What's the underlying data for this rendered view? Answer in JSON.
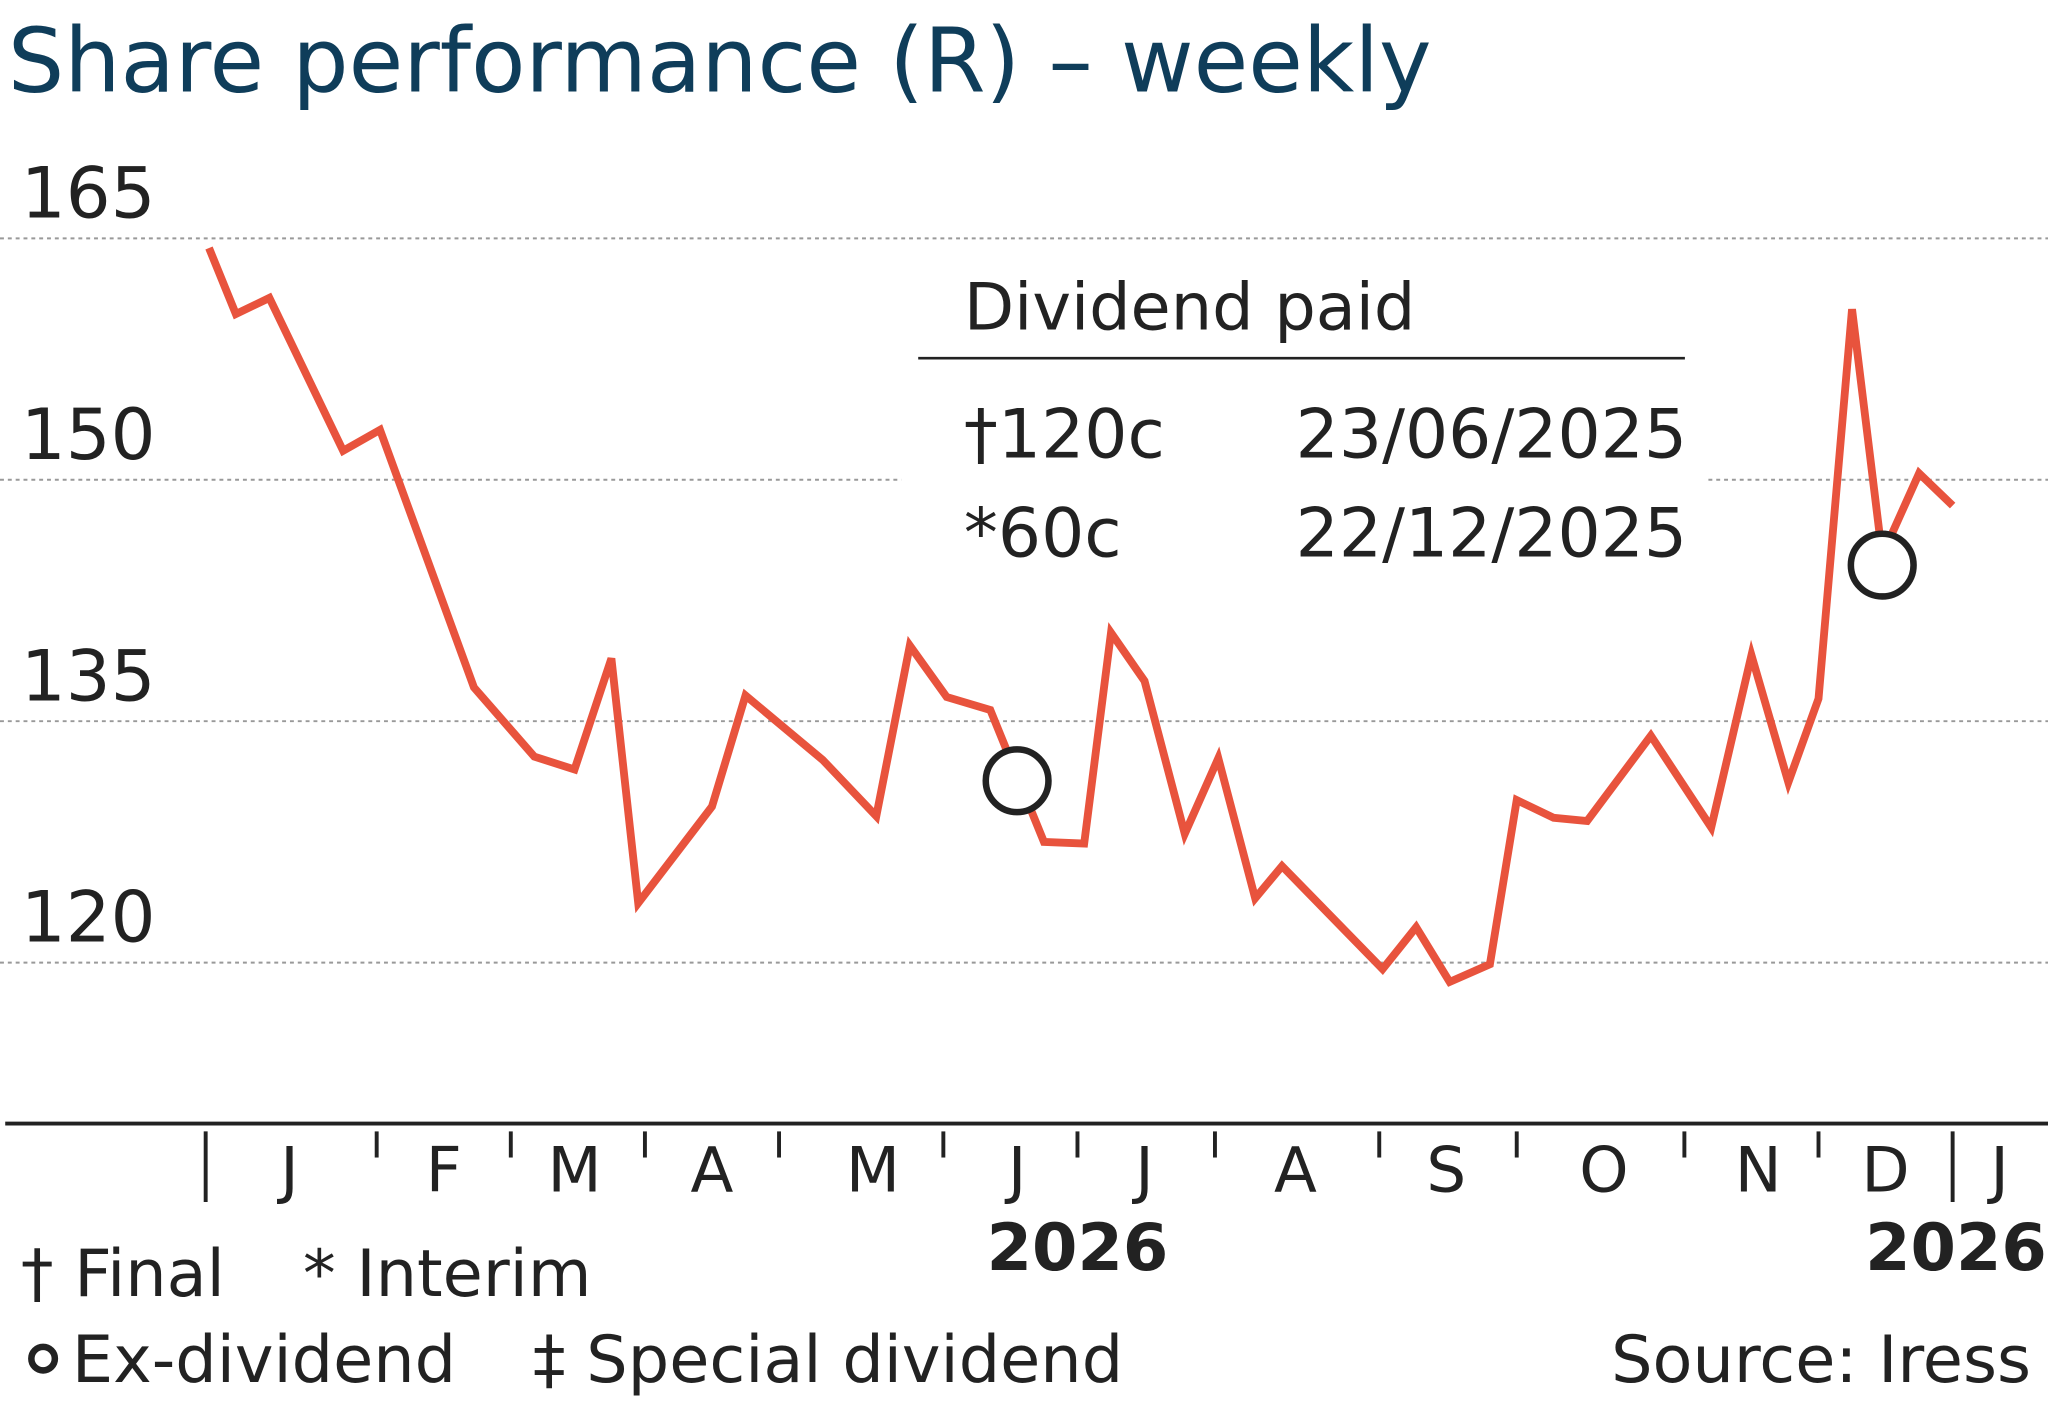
{
  "chart_data": {
    "type": "line",
    "title": "Share performance (R) – weekly",
    "x": [
      0,
      0.8,
      1.8,
      4.0,
      5.1,
      7.9,
      9.7,
      10.9,
      12.0,
      12.8,
      15.0,
      16.0,
      18.3,
      19.9,
      20.9,
      22.0,
      23.3,
      24.9,
      26.1,
      26.9,
      27.9,
      29.1,
      30.1,
      31.2,
      32.0,
      35.0,
      36.0,
      37.0,
      38.2,
      39.0,
      40.1,
      41.1,
      43.0,
      44.8,
      46.0,
      47.1,
      48.0,
      49.0,
      49.9,
      51.0,
      52.0
    ],
    "series": [
      {
        "name": "Share price",
        "color": "#e8533d",
        "values": [
          164.4,
          160.3,
          161.3,
          151.8,
          153.1,
          137.1,
          132.8,
          132.0,
          138.9,
          123.7,
          129.7,
          136.6,
          132.6,
          129.1,
          139.7,
          136.5,
          135.7,
          127.5,
          127.4,
          140.5,
          137.5,
          128.0,
          132.7,
          124.0,
          126.0,
          119.6,
          122.2,
          118.8,
          119.9,
          130.1,
          129.0,
          128.8,
          134.1,
          128.4,
          139.1,
          131.2,
          136.4,
          160.6,
          145.3,
          150.4,
          148.4
        ]
      }
    ],
    "ex_dividend": {
      "x": [
        24.1,
        49.9
      ],
      "values": [
        131.3,
        144.7
      ]
    },
    "ylim": [
      110,
      172
    ],
    "yticks": [
      120,
      135,
      150,
      165
    ],
    "xlim": [
      -6,
      55
    ],
    "xticks": [
      -0.1,
      5.0,
      9.0,
      13.0,
      17.0,
      21.9,
      25.9,
      30.0,
      34.9,
      39.0,
      44.0,
      48.0,
      52.0
    ],
    "x_labels": [
      {
        "value": 2.4,
        "label": "J"
      },
      {
        "value": 7.0,
        "label": "F"
      },
      {
        "value": 10.9,
        "label": "M"
      },
      {
        "value": 15.0,
        "label": "A"
      },
      {
        "value": 19.8,
        "label": "M"
      },
      {
        "value": 24.1,
        "label": "J"
      },
      {
        "value": 27.9,
        "label": "J"
      },
      {
        "value": 32.4,
        "label": "A"
      },
      {
        "value": 36.9,
        "label": "S"
      },
      {
        "value": 41.6,
        "label": "O"
      },
      {
        "value": 46.2,
        "label": "N"
      },
      {
        "value": 50.0,
        "label": "D"
      },
      {
        "value": 53.4,
        "label": "J"
      }
    ],
    "year_labels": [
      {
        "value": 25.9,
        "label": "2026"
      },
      {
        "value": 52.1,
        "label": "2026"
      }
    ],
    "grid": true,
    "dividend_box": {
      "title": "Dividend paid",
      "rows": [
        [
          "†120c",
          "23/06/2025"
        ],
        [
          "*60c",
          "22/12/2025"
        ]
      ]
    },
    "footnotes": {
      "final": "† Final",
      "interim": "* Interim",
      "ex_dividend": "Ex-dividend",
      "special": "‡ Special dividend",
      "source": "Source: Iress"
    }
  }
}
